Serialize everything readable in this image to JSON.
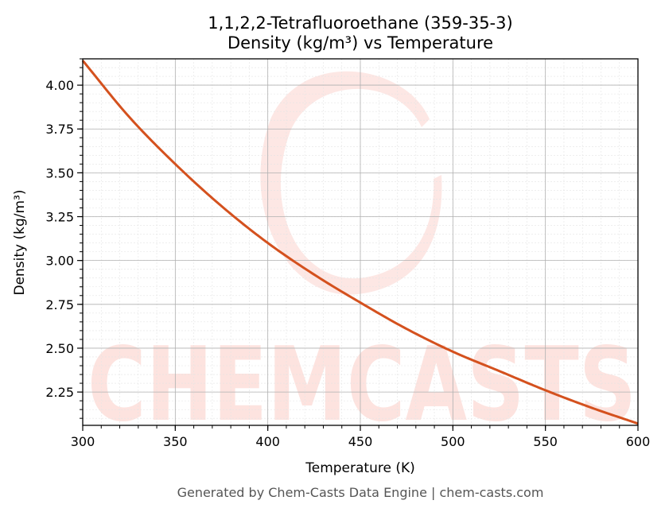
{
  "chart_data": {
    "type": "line",
    "title_line1": "1,1,2,2-Tetrafluoroethane (359-35-3)",
    "title_line2": "Density (kg/m³) vs Temperature",
    "xlabel": "Temperature (K)",
    "ylabel": "Density (kg/m³)",
    "xlim": [
      300,
      600
    ],
    "ylim": [
      2.06,
      4.15
    ],
    "x_ticks": [
      300,
      350,
      400,
      450,
      500,
      550,
      600
    ],
    "x_tick_labels": [
      "300",
      "350",
      "400",
      "450",
      "500",
      "550",
      "600"
    ],
    "y_ticks": [
      2.25,
      2.5,
      2.75,
      3.0,
      3.25,
      3.5,
      3.75,
      4.0
    ],
    "y_tick_labels": [
      "2.25",
      "2.50",
      "2.75",
      "3.00",
      "3.25",
      "3.50",
      "3.75",
      "4.00"
    ],
    "grid": true,
    "series": [
      {
        "color": "#d4511e",
        "x": [
          300,
          325,
          350,
          375,
          400,
          425,
          450,
          475,
          500,
          525,
          550,
          575,
          600
        ],
        "y": [
          4.14,
          3.82,
          3.55,
          3.31,
          3.1,
          2.92,
          2.76,
          2.61,
          2.48,
          2.37,
          2.26,
          2.16,
          2.07
        ]
      }
    ]
  },
  "watermark": {
    "text": "CHEMCASTS",
    "color": "#fde3df"
  },
  "footer": "Generated by Chem-Casts Data Engine | chem-casts.com"
}
